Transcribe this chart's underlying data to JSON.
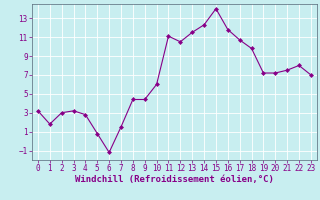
{
  "x": [
    0,
    1,
    2,
    3,
    4,
    5,
    6,
    7,
    8,
    9,
    10,
    11,
    12,
    13,
    14,
    15,
    16,
    17,
    18,
    19,
    20,
    21,
    22,
    23
  ],
  "y": [
    3.2,
    1.8,
    3.0,
    3.2,
    2.8,
    0.8,
    -1.2,
    1.5,
    4.4,
    4.4,
    6.0,
    11.1,
    10.5,
    11.5,
    12.3,
    14.0,
    11.8,
    10.7,
    9.8,
    7.2,
    7.2,
    7.5,
    8.0,
    7.0
  ],
  "line_color": "#880088",
  "marker": "D",
  "marker_size": 2,
  "bg_color": "#c8eef0",
  "grid_color": "#aadddd",
  "xlabel": "Windchill (Refroidissement éolien,°C)",
  "xlim": [
    -0.5,
    23.5
  ],
  "ylim": [
    -2,
    14.5
  ],
  "yticks": [
    -1,
    1,
    3,
    5,
    7,
    9,
    11,
    13
  ],
  "xticks": [
    0,
    1,
    2,
    3,
    4,
    5,
    6,
    7,
    8,
    9,
    10,
    11,
    12,
    13,
    14,
    15,
    16,
    17,
    18,
    19,
    20,
    21,
    22,
    23
  ],
  "tick_label_fontsize": 5.5,
  "xlabel_fontsize": 6.5
}
